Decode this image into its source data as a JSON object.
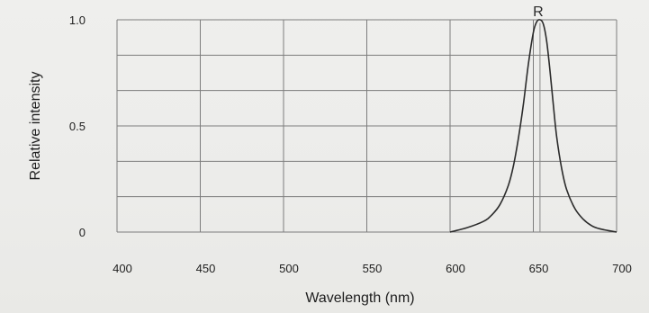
{
  "chart_data": {
    "type": "line",
    "title": "",
    "xlabel": "Wavelength (nm)",
    "ylabel": "Relative intensity",
    "xlim": [
      400,
      700
    ],
    "ylim": [
      0,
      1.0
    ],
    "x_ticks": [
      400,
      450,
      500,
      550,
      600,
      650,
      700
    ],
    "x_tick_labels": [
      "400",
      "450",
      "500",
      "550",
      "600",
      "650",
      "700"
    ],
    "y_ticks": [
      0,
      0.5,
      1.0
    ],
    "y_tick_labels": [
      "0",
      "0.5",
      "1.0"
    ],
    "grid": true,
    "x_grid_lines": [
      400,
      450,
      500,
      550,
      600,
      650,
      700
    ],
    "y_grid_lines": [
      0,
      0.167,
      0.333,
      0.5,
      0.667,
      0.833,
      1.0
    ],
    "series": [
      {
        "label": "R",
        "x": [
          600,
          610,
          620,
          625,
          630,
          635,
          638,
          641,
          644,
          647,
          650,
          652,
          654,
          656,
          658,
          660,
          662,
          664,
          667,
          670,
          675,
          680,
          685,
          690,
          700
        ],
        "y": [
          0.0,
          0.02,
          0.05,
          0.08,
          0.13,
          0.22,
          0.31,
          0.44,
          0.6,
          0.79,
          0.94,
          0.99,
          1.0,
          0.98,
          0.9,
          0.76,
          0.6,
          0.45,
          0.3,
          0.2,
          0.11,
          0.06,
          0.03,
          0.015,
          0.0
        ]
      }
    ],
    "annotations": [
      {
        "text": "R",
        "x": 654,
        "y": 1.0
      }
    ],
    "peak_marker_x": 654
  }
}
